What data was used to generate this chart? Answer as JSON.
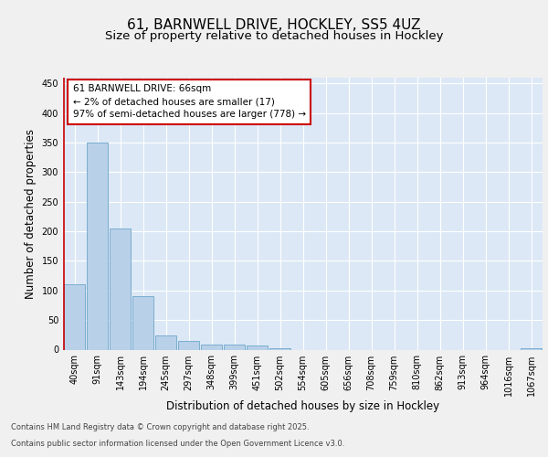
{
  "title1": "61, BARNWELL DRIVE, HOCKLEY, SS5 4UZ",
  "title2": "Size of property relative to detached houses in Hockley",
  "xlabel": "Distribution of detached houses by size in Hockley",
  "ylabel": "Number of detached properties",
  "categories": [
    "40sqm",
    "91sqm",
    "143sqm",
    "194sqm",
    "245sqm",
    "297sqm",
    "348sqm",
    "399sqm",
    "451sqm",
    "502sqm",
    "554sqm",
    "605sqm",
    "656sqm",
    "708sqm",
    "759sqm",
    "810sqm",
    "862sqm",
    "913sqm",
    "964sqm",
    "1016sqm",
    "1067sqm"
  ],
  "values": [
    110,
    350,
    205,
    90,
    24,
    15,
    9,
    8,
    7,
    3,
    0,
    0,
    0,
    0,
    0,
    0,
    0,
    0,
    0,
    0,
    3
  ],
  "bar_color": "#b8d0e8",
  "bar_edge_color": "#7aaed0",
  "vline_color": "#cc0000",
  "annotation_text": "61 BARNWELL DRIVE: 66sqm\n← 2% of detached houses are smaller (17)\n97% of semi-detached houses are larger (778) →",
  "annotation_box_color": "#ffffff",
  "annotation_box_edge": "#cc0000",
  "plot_bg_color": "#dce8f5",
  "fig_bg_color": "#f0f0f0",
  "grid_color": "#ffffff",
  "footer1": "Contains HM Land Registry data © Crown copyright and database right 2025.",
  "footer2": "Contains public sector information licensed under the Open Government Licence v3.0.",
  "ylim": [
    0,
    460
  ],
  "yticks": [
    0,
    50,
    100,
    150,
    200,
    250,
    300,
    350,
    400,
    450
  ],
  "title_fontsize": 11,
  "subtitle_fontsize": 9.5,
  "axis_label_fontsize": 8.5,
  "tick_fontsize": 7,
  "annotation_fontsize": 7.5,
  "footer_fontsize": 6
}
